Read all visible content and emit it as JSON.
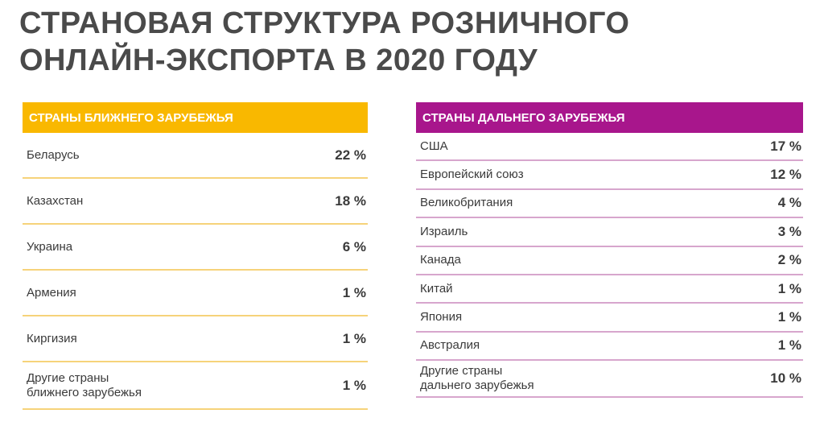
{
  "title": {
    "line1": "СТРАНОВАЯ СТРУКТУРА РОЗНИЧНОГО",
    "line2": "ОНЛАЙН-ЭКСПОРТА В 2020 ГОДУ"
  },
  "colors": {
    "near_header": "#f9b800",
    "far_header": "#a8168c"
  },
  "near_abroad": {
    "header": "СТРАНЫ БЛИЖНЕГО ЗАРУБЕЖЬЯ",
    "rows": [
      {
        "label": "Беларусь",
        "value": "22 %"
      },
      {
        "label": "Казахстан",
        "value": "18 %"
      },
      {
        "label": "Украина",
        "value": "6 %"
      },
      {
        "label": "Армения",
        "value": "1 %"
      },
      {
        "label": "Киргизия",
        "value": "1 %"
      },
      {
        "label_line1": "Другие страны",
        "label_line2": "ближнего зарубежья",
        "value": "1 %"
      }
    ]
  },
  "far_abroad": {
    "header": "СТРАНЫ ДАЛЬНЕГО ЗАРУБЕЖЬЯ",
    "rows": [
      {
        "label": "США",
        "value": "17 %"
      },
      {
        "label": "Европейский союз",
        "value": "12 %"
      },
      {
        "label": "Великобритания",
        "value": "4 %"
      },
      {
        "label": "Израиль",
        "value": "3 %"
      },
      {
        "label": "Канада",
        "value": "2 %"
      },
      {
        "label": "Китай",
        "value": "1 %"
      },
      {
        "label": "Япония",
        "value": "1 %"
      },
      {
        "label": "Австралия",
        "value": "1 %"
      },
      {
        "label_line1": "Другие страны",
        "label_line2": "дальнего зарубежья",
        "value": "10 %"
      }
    ]
  }
}
